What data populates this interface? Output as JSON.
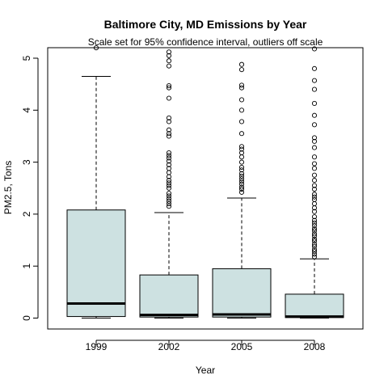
{
  "chart_data": {
    "type": "boxplot",
    "title": "Baltimore City, MD Emissions by Year",
    "subtitle": "Scale set for 95% confidence interval, outliers off scale",
    "xlabel": "Year",
    "ylabel": "PM2.5, Tons",
    "ylim": [
      0,
      5.2
    ],
    "y_ticks": [
      "0",
      "1",
      "2",
      "3",
      "4",
      "5"
    ],
    "grid": false,
    "colors": {
      "box_fill": "#cde1e1",
      "stroke": "#000000",
      "median": "#000000"
    },
    "categories": [
      "1999",
      "2002",
      "2005",
      "2008"
    ],
    "boxes": [
      {
        "category": "1999",
        "whisker_low": 0.0,
        "q1": 0.03,
        "median": 0.28,
        "q3": 2.08,
        "whisker_high": 4.65,
        "outliers": [
          5.2
        ]
      },
      {
        "category": "2002",
        "whisker_low": 0.0,
        "q1": 0.02,
        "median": 0.06,
        "q3": 0.83,
        "whisker_high": 2.03,
        "outliers": [
          2.15,
          2.2,
          2.25,
          2.3,
          2.35,
          2.4,
          2.5,
          2.55,
          2.6,
          2.65,
          2.72,
          2.8,
          2.88,
          2.95,
          3.02,
          3.08,
          3.13,
          3.18,
          3.5,
          3.55,
          3.62,
          3.78,
          3.85,
          4.23,
          4.43,
          4.47,
          4.85,
          4.95,
          5.05,
          5.12
        ]
      },
      {
        "category": "2005",
        "whisker_low": 0.0,
        "q1": 0.02,
        "median": 0.07,
        "q3": 0.95,
        "whisker_high": 2.31,
        "outliers": [
          2.42,
          2.48,
          2.52,
          2.58,
          2.63,
          2.68,
          2.73,
          2.78,
          2.85,
          2.9,
          3.0,
          3.1,
          3.18,
          3.25,
          3.3,
          3.55,
          3.78,
          4.0,
          4.2,
          4.43,
          4.48,
          4.78,
          4.88
        ]
      },
      {
        "category": "2008",
        "whisker_low": 0.0,
        "q1": 0.01,
        "median": 0.03,
        "q3": 0.46,
        "whisker_high": 1.14,
        "outliers": [
          1.18,
          1.23,
          1.28,
          1.32,
          1.38,
          1.42,
          1.48,
          1.52,
          1.58,
          1.62,
          1.68,
          1.72,
          1.78,
          1.83,
          1.88,
          1.95,
          2.05,
          2.12,
          2.2,
          2.28,
          2.33,
          2.38,
          2.48,
          2.55,
          2.65,
          2.75,
          2.88,
          2.97,
          3.1,
          3.28,
          3.4,
          3.47,
          3.72,
          3.9,
          4.13,
          4.4,
          4.57,
          4.8,
          5.18
        ]
      }
    ]
  }
}
